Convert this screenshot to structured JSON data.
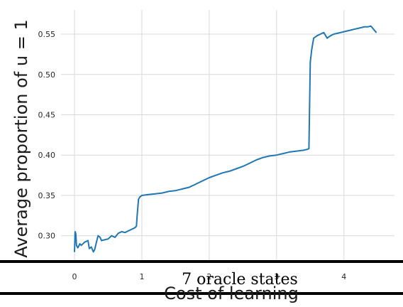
{
  "chart_data": {
    "type": "line",
    "title": "",
    "xlabel": "Cost of learning",
    "ylabel": "Average proportion of u = 1",
    "xlim": [
      -0.2,
      4.75
    ],
    "ylim": [
      0.268,
      0.58
    ],
    "x_ticks": [
      0,
      1,
      2,
      3,
      4
    ],
    "x_tick_labels": [
      "0",
      "1",
      "2",
      "3",
      "4"
    ],
    "y_ticks": [
      0.3,
      0.35,
      0.4,
      0.45,
      0.5,
      0.55
    ],
    "y_tick_labels": [
      "0.30",
      "0.35",
      "0.40",
      "0.45",
      "0.50",
      "0.55"
    ],
    "grid": true,
    "series": [
      {
        "color": "#1f77b4",
        "x": [
          0.0,
          0.01,
          0.02,
          0.03,
          0.05,
          0.08,
          0.1,
          0.15,
          0.2,
          0.22,
          0.25,
          0.28,
          0.3,
          0.32,
          0.35,
          0.38,
          0.4,
          0.45,
          0.5,
          0.55,
          0.6,
          0.65,
          0.7,
          0.75,
          0.8,
          0.85,
          0.9,
          0.92,
          0.93,
          0.95,
          0.97,
          1.0,
          1.1,
          1.2,
          1.3,
          1.4,
          1.5,
          1.6,
          1.7,
          1.8,
          1.9,
          2.0,
          2.1,
          2.2,
          2.3,
          2.4,
          2.5,
          2.6,
          2.7,
          2.8,
          2.9,
          3.0,
          3.1,
          3.2,
          3.3,
          3.4,
          3.45,
          3.48,
          3.5,
          3.52,
          3.55,
          3.6,
          3.65,
          3.7,
          3.75,
          3.8,
          3.85,
          3.9,
          3.95,
          4.0,
          4.05,
          4.1,
          4.15,
          4.2,
          4.25,
          4.3,
          4.35,
          4.4,
          4.45,
          4.48
        ],
        "y": [
          0.28,
          0.305,
          0.302,
          0.288,
          0.285,
          0.29,
          0.288,
          0.292,
          0.294,
          0.284,
          0.286,
          0.28,
          0.283,
          0.29,
          0.3,
          0.298,
          0.294,
          0.295,
          0.296,
          0.3,
          0.298,
          0.303,
          0.305,
          0.304,
          0.306,
          0.308,
          0.31,
          0.312,
          0.325,
          0.345,
          0.348,
          0.35,
          0.351,
          0.352,
          0.353,
          0.355,
          0.356,
          0.358,
          0.36,
          0.364,
          0.368,
          0.372,
          0.375,
          0.378,
          0.38,
          0.383,
          0.386,
          0.39,
          0.394,
          0.397,
          0.399,
          0.4,
          0.402,
          0.404,
          0.405,
          0.406,
          0.407,
          0.408,
          0.515,
          0.53,
          0.545,
          0.548,
          0.55,
          0.552,
          0.545,
          0.548,
          0.55,
          0.551,
          0.552,
          0.553,
          0.554,
          0.555,
          0.556,
          0.557,
          0.558,
          0.559,
          0.559,
          0.56,
          0.555,
          0.552
        ]
      }
    ],
    "annotations": [
      "7 oracle states"
    ]
  }
}
